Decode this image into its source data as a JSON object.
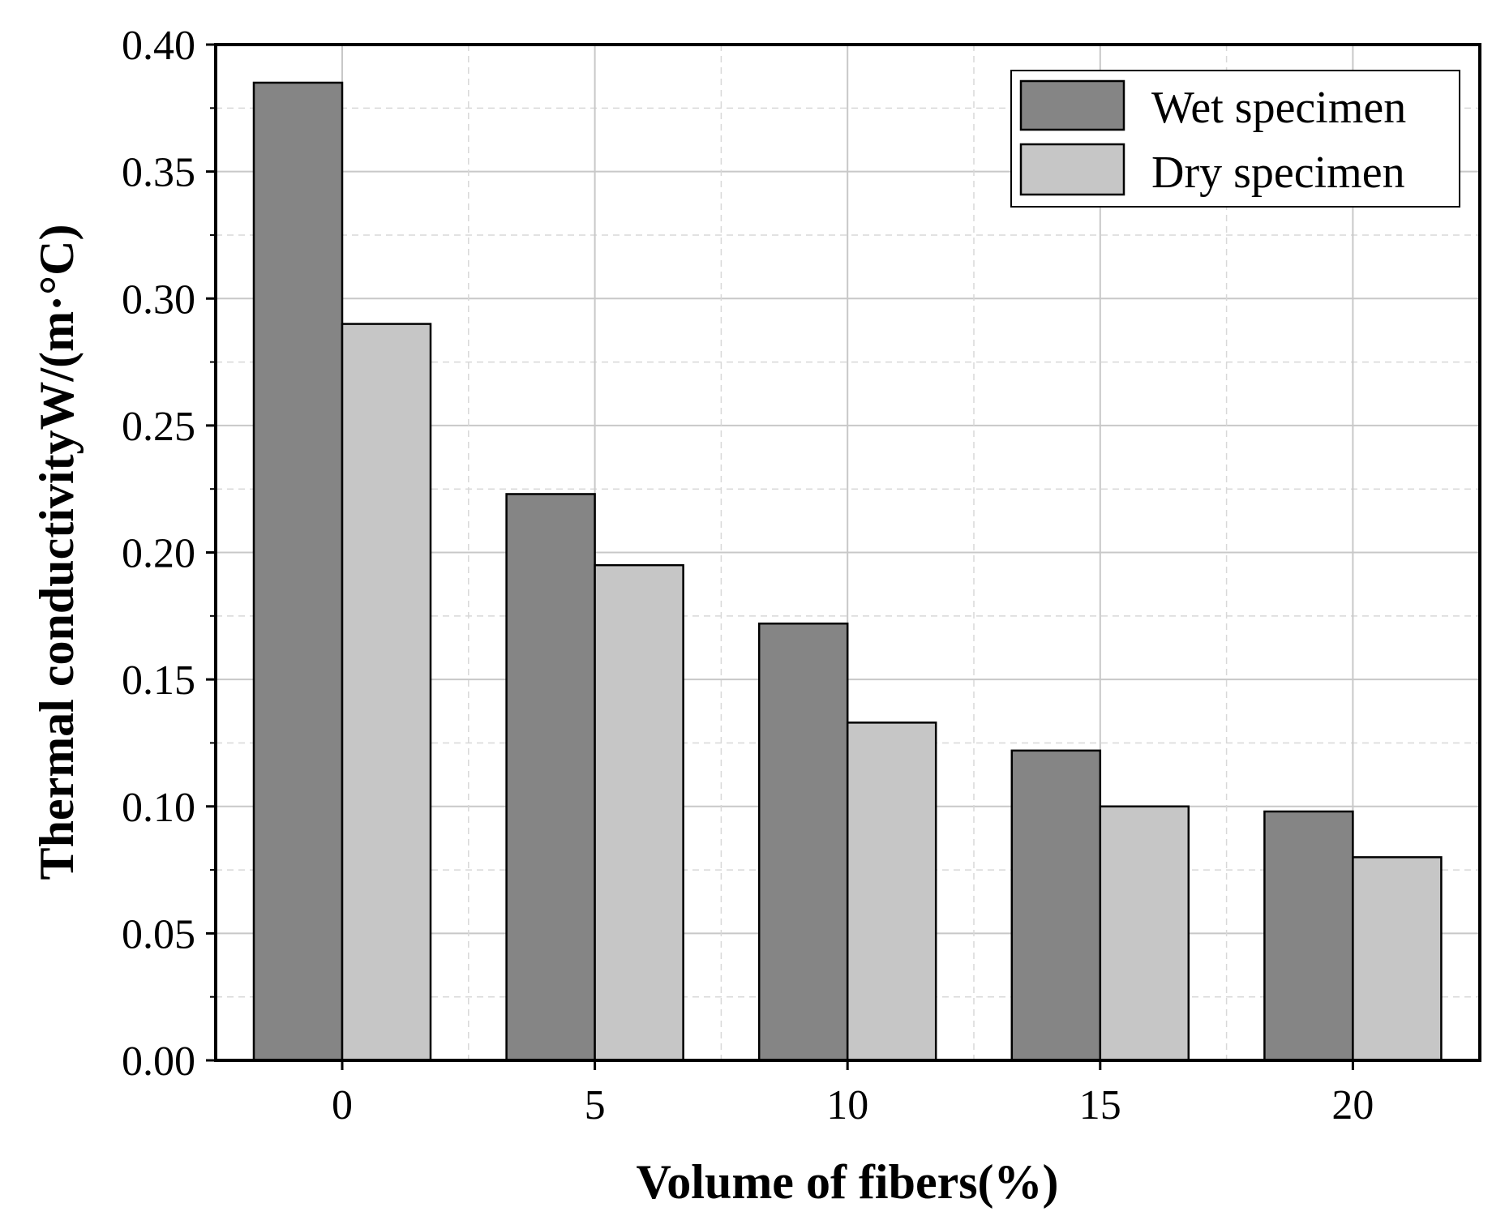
{
  "chart_data": {
    "type": "bar",
    "title": "",
    "xlabel": "Volume of fibers(%)",
    "ylabel": "Thermal conductivityW/(m·°C)",
    "categories": [
      "0",
      "5",
      "10",
      "15",
      "20"
    ],
    "series": [
      {
        "name": "Wet specimen",
        "color": "#858585",
        "values": [
          0.385,
          0.223,
          0.172,
          0.122,
          0.098
        ]
      },
      {
        "name": "Dry specimen",
        "color": "#c6c6c6",
        "values": [
          0.29,
          0.195,
          0.133,
          0.1,
          0.08
        ]
      }
    ],
    "ylim": [
      0,
      0.4
    ],
    "yticks": [
      "0.00",
      "0.05",
      "0.10",
      "0.15",
      "0.20",
      "0.25",
      "0.30",
      "0.35",
      "0.40"
    ],
    "grid": true,
    "legend_position": "top-right"
  }
}
